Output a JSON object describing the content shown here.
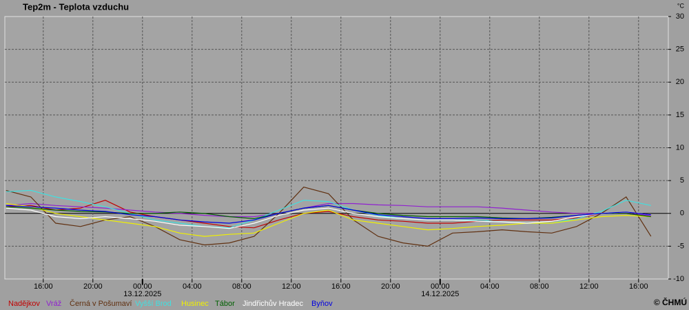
{
  "chart_data": {
    "type": "line",
    "title": "Tep2m - Teplota vzduchu",
    "y_unit": "°C",
    "credit": "© ČHMÚ",
    "x": [
      13,
      15,
      17,
      19,
      21,
      23,
      25,
      27,
      29,
      31,
      33,
      35,
      37,
      39,
      41,
      43,
      45,
      47,
      49,
      51,
      53,
      55,
      57,
      59,
      61,
      63,
      65
    ],
    "xlim": [
      12.9,
      66.4
    ],
    "xticks": [
      {
        "value": 16,
        "label": "16:00"
      },
      {
        "value": 20,
        "label": "20:00"
      },
      {
        "value": 24,
        "label": "00:00"
      },
      {
        "value": 28,
        "label": "04:00"
      },
      {
        "value": 32,
        "label": "08:00"
      },
      {
        "value": 36,
        "label": "12:00"
      },
      {
        "value": 40,
        "label": "16:00"
      },
      {
        "value": 44,
        "label": "20:00"
      },
      {
        "value": 48,
        "label": "00:00"
      },
      {
        "value": 52,
        "label": "04:00"
      },
      {
        "value": 56,
        "label": "08:00"
      },
      {
        "value": 60,
        "label": "12:00"
      },
      {
        "value": 64,
        "label": "16:00"
      }
    ],
    "date_labels": [
      {
        "value": 24,
        "label": "13.12.2025"
      },
      {
        "value": 48,
        "label": "14.12.2025"
      }
    ],
    "ylim": [
      -10,
      30
    ],
    "yticks": [
      -10,
      -5,
      0,
      5,
      10,
      15,
      20,
      25,
      30
    ],
    "grid": true,
    "series": [
      {
        "name": "Nadějkov",
        "color": "#c00000",
        "values": [
          1,
          1.2,
          0.5,
          0.8,
          2,
          0.2,
          -0.5,
          -1,
          -1.5,
          -2,
          -2.2,
          -1,
          0,
          0.3,
          -0.5,
          -1,
          -1.2,
          -1.5,
          -1.5,
          -1.2,
          -1,
          -1,
          -1,
          -0.7,
          0,
          0,
          -0.5
        ]
      },
      {
        "name": "Vráž",
        "color": "#9020d0",
        "values": [
          1.2,
          1.5,
          1.2,
          1,
          0.8,
          0.5,
          0.2,
          0,
          -0.3,
          -0.5,
          -0.5,
          0,
          0.8,
          1.5,
          1.5,
          1.3,
          1.2,
          1,
          1,
          1,
          0.8,
          0.5,
          0.2,
          0,
          0,
          0,
          -0.3
        ]
      },
      {
        "name": "Černá v Pošumaví",
        "color": "#603010",
        "values": [
          3.5,
          2.5,
          -1.5,
          -2,
          -1,
          -0.5,
          -2,
          -4,
          -4.8,
          -4.5,
          -3.5,
          0,
          4,
          3,
          -1,
          -3.5,
          -4.5,
          -5,
          -3,
          -2.8,
          -2.5,
          -2.8,
          -3,
          -2,
          0,
          2.5,
          -3.5
        ]
      },
      {
        "name": "Vyšší Brod",
        "color": "#40e0e0",
        "values": [
          3.3,
          3.5,
          2.5,
          1.8,
          1,
          0,
          -1,
          -1.5,
          -2,
          -2.2,
          -1,
          0.5,
          2,
          1.8,
          0.5,
          -0.3,
          -0.8,
          -1,
          -1,
          -1,
          -1.3,
          -1.5,
          -1.5,
          -0.8,
          0.3,
          2,
          1.2
        ]
      },
      {
        "name": "Husinec",
        "color": "#f0f000",
        "values": [
          1.5,
          1,
          0,
          -0.5,
          -1,
          -1.5,
          -2,
          -3,
          -3.5,
          -3.2,
          -3,
          -1.5,
          0,
          0.5,
          -1,
          -1.5,
          -2,
          -2.5,
          -2.3,
          -2,
          -1.8,
          -1.5,
          -1.5,
          -1,
          -0.5,
          -0.3,
          -0.5
        ]
      },
      {
        "name": "Tábor",
        "color": "#006000",
        "values": [
          1,
          0.8,
          0.5,
          0.3,
          0.2,
          0,
          0,
          0.2,
          0,
          -0.5,
          -0.8,
          0,
          0.8,
          1.2,
          0.5,
          0,
          -0.3,
          -0.5,
          -0.5,
          -0.5,
          -0.7,
          -0.8,
          -0.6,
          -0.3,
          0,
          0,
          -0.5
        ]
      },
      {
        "name": "Jindřichův Hradec",
        "color": "#ffffff",
        "values": [
          0.8,
          0.5,
          -0.5,
          -0.8,
          -0.5,
          -0.8,
          -1.2,
          -1.8,
          -2,
          -2.3,
          -1.5,
          -0.3,
          0.5,
          0.8,
          0,
          -0.5,
          -0.8,
          -1,
          -1,
          -1.2,
          -1.3,
          -1.5,
          -1.2,
          -0.5,
          0,
          0.2,
          -0.2
        ]
      },
      {
        "name": "Byňov",
        "color": "#0000e0",
        "values": [
          1.2,
          1,
          0.8,
          0.5,
          0.3,
          -0.2,
          -0.5,
          -1,
          -1.3,
          -1.5,
          -1,
          0,
          0.8,
          1.2,
          0.5,
          -0.2,
          -0.5,
          -0.8,
          -0.8,
          -0.7,
          -0.8,
          -0.8,
          -0.7,
          -0.3,
          0,
          0.2,
          -0.2
        ]
      }
    ]
  }
}
